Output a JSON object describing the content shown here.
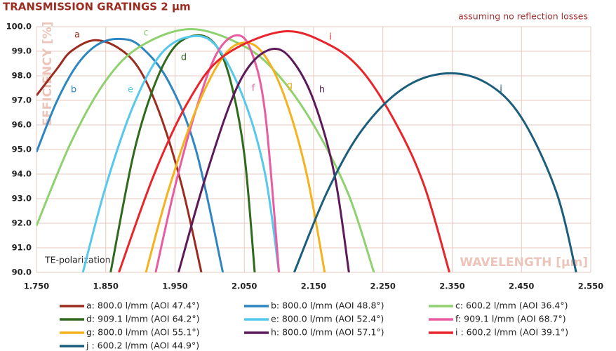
{
  "chart_data": {
    "type": "line",
    "title": "TRANSMISSION GRATINGS 2 µm",
    "subtitle": "assuming no reflection losses",
    "y_label": "EFFICIENCY [%]",
    "x_label": "WAVELENGTH [µm]",
    "annotation": "TE-polarization",
    "xlim": [
      1.75,
      2.55
    ],
    "xticks": [
      {
        "value": 1.75,
        "label": "1.750"
      },
      {
        "value": 1.85,
        "label": "1.850"
      },
      {
        "value": 1.95,
        "label": "1.950"
      },
      {
        "value": 2.05,
        "label": "2.050"
      },
      {
        "value": 2.15,
        "label": "2.150"
      },
      {
        "value": 2.25,
        "label": "2.250"
      },
      {
        "value": 2.35,
        "label": "2.350"
      },
      {
        "value": 2.45,
        "label": "2.450"
      },
      {
        "value": 2.55,
        "label": "2.550"
      }
    ],
    "ylim": [
      90,
      100
    ],
    "yticks": [
      {
        "value": 90,
        "label": "90.0"
      },
      {
        "value": 91,
        "label": "91.0"
      },
      {
        "value": 92,
        "label": "92.0"
      },
      {
        "value": 93,
        "label": "93.0"
      },
      {
        "value": 94,
        "label": "94.0"
      },
      {
        "value": 95,
        "label": "95.0"
      },
      {
        "value": 96,
        "label": "96.0"
      },
      {
        "value": 97,
        "label": "97.0"
      },
      {
        "value": 98,
        "label": "98.0"
      },
      {
        "value": 99,
        "label": "99.0"
      },
      {
        "value": 100,
        "label": "100.0"
      }
    ],
    "grid": true,
    "series": [
      {
        "name": "a: 800.0 l/mm (AOI 47.4°)",
        "label": "a",
        "color": "#9b2d20",
        "x": [
          1.75,
          1.78,
          1.8,
          1.834,
          1.87,
          1.9,
          1.93,
          1.96,
          1.988
        ],
        "values": [
          97.2,
          98.3,
          99.0,
          99.45,
          99.1,
          98.2,
          96.3,
          93.5,
          90.0
        ]
      },
      {
        "name": "b: 800.0 l/mm (AOI 48.8°)",
        "label": "b",
        "color": "#2e86c1",
        "x": [
          1.75,
          1.78,
          1.81,
          1.84,
          1.872,
          1.9,
          1.94,
          1.98,
          2.019
        ],
        "values": [
          94.9,
          97.0,
          98.5,
          99.3,
          99.5,
          99.2,
          97.8,
          95.0,
          90.0
        ]
      },
      {
        "name": "c: 600.2 l/mm (AOI 36.4°)",
        "label": "c",
        "color": "#8fd16e",
        "x": [
          1.75,
          1.8,
          1.85,
          1.9,
          1.973,
          2.05,
          2.1,
          2.15,
          2.2,
          2.237
        ],
        "values": [
          91.9,
          95.3,
          97.8,
          99.2,
          99.9,
          99.2,
          98.0,
          96.0,
          93.2,
          90.0
        ]
      },
      {
        "name": "d: 909.1 l/mm (AOI 64.2°)",
        "label": "d",
        "color": "#2f6b1c",
        "x": [
          1.857,
          1.89,
          1.92,
          1.95,
          1.984,
          2.01,
          2.03,
          2.05,
          2.065
        ],
        "values": [
          90.0,
          94.8,
          97.6,
          99.2,
          99.65,
          99.2,
          97.8,
          94.8,
          90.0
        ]
      },
      {
        "name": "e: 800.0 l/mm (AOI 52.4°)",
        "label": "e",
        "color": "#55c8ec",
        "x": [
          1.817,
          1.85,
          1.89,
          1.93,
          1.973,
          2.01,
          2.05,
          2.08,
          2.1
        ],
        "values": [
          90.0,
          93.5,
          96.8,
          98.9,
          99.6,
          99.2,
          97.0,
          94.0,
          90.0
        ]
      },
      {
        "name": "f: 909.1 l/mm (AOI 68.7°)",
        "label": "f",
        "color": "#e85ca2",
        "x": [
          1.922,
          1.95,
          1.98,
          2.01,
          2.039,
          2.06,
          2.08,
          2.1
        ],
        "values": [
          90.0,
          93.5,
          96.6,
          98.9,
          99.65,
          99.0,
          96.5,
          90.0
        ]
      },
      {
        "name": "g: 800.0 l/mm (AOI 55.1°)",
        "label": "g",
        "color": "#f4b21f",
        "x": [
          1.908,
          1.94,
          1.98,
          2.02,
          2.052,
          2.08,
          2.11,
          2.14,
          2.166
        ],
        "values": [
          90.0,
          93.3,
          96.6,
          98.8,
          99.35,
          98.8,
          97.0,
          94.0,
          90.0
        ]
      },
      {
        "name": "h: 800.0 l/mm (AOI 57.1°)",
        "label": "h",
        "color": "#5c1a5a",
        "x": [
          1.955,
          1.99,
          2.03,
          2.06,
          2.093,
          2.12,
          2.15,
          2.18,
          2.201
        ],
        "values": [
          90.0,
          93.5,
          96.9,
          98.5,
          99.1,
          98.6,
          97.0,
          94.0,
          90.0
        ]
      },
      {
        "name": "i : 600.2 l/mm (AOI 39.1°)",
        "label": "i",
        "color": "#e8252b",
        "x": [
          1.869,
          1.92,
          1.97,
          2.02,
          2.105,
          2.17,
          2.22,
          2.27,
          2.31,
          2.346
        ],
        "values": [
          90.0,
          94.0,
          97.0,
          98.8,
          99.8,
          99.3,
          98.2,
          96.0,
          93.5,
          90.0
        ]
      },
      {
        "name": "j : 600.2 l/mm (AOI 44.9°)",
        "label": "j",
        "color": "#1b5e7b",
        "x": [
          2.122,
          2.17,
          2.22,
          2.28,
          2.342,
          2.4,
          2.45,
          2.5,
          2.529
        ],
        "values": [
          90.0,
          93.3,
          95.8,
          97.5,
          98.1,
          97.7,
          96.3,
          93.3,
          90.0
        ]
      }
    ]
  }
}
